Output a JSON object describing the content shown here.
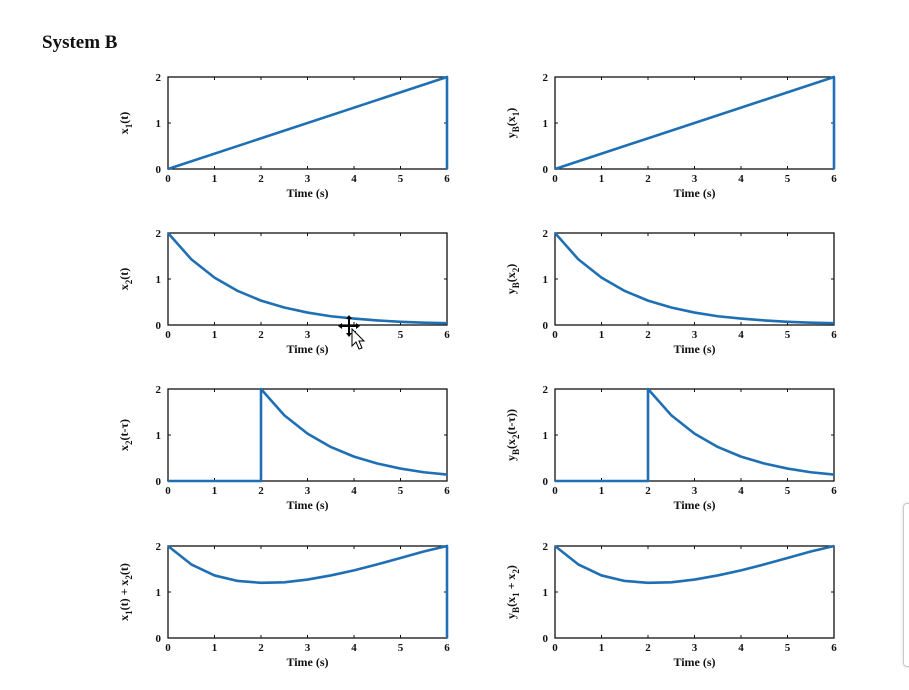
{
  "title": "System B",
  "colors": {
    "line": "#1f6fb4",
    "axes": "#111111"
  },
  "cursor_icon": "move-cursor-icon",
  "chart_data": [
    {
      "type": "line",
      "id": "x1",
      "ylabel": "x_1(t)",
      "xlabel": "Time (s)",
      "xlim": [
        0,
        6
      ],
      "ylim": [
        0,
        2
      ],
      "xticks": [
        0,
        1,
        2,
        3,
        4,
        5,
        6
      ],
      "yticks": [
        0,
        1,
        2
      ],
      "series": [
        {
          "x": [
            0,
            6,
            6
          ],
          "y": [
            0,
            2,
            0
          ]
        }
      ]
    },
    {
      "type": "line",
      "id": "yB_x1",
      "ylabel": "y_B(x_1)",
      "xlabel": "Time (s)",
      "xlim": [
        0,
        6
      ],
      "ylim": [
        0,
        2
      ],
      "xticks": [
        0,
        1,
        2,
        3,
        4,
        5,
        6
      ],
      "yticks": [
        0,
        1,
        2
      ],
      "series": [
        {
          "x": [
            0,
            6,
            6
          ],
          "y": [
            0,
            2,
            0
          ]
        }
      ]
    },
    {
      "type": "line",
      "id": "x2",
      "ylabel": "x_2(t)",
      "xlabel": "Time (s)",
      "xlim": [
        0,
        6
      ],
      "ylim": [
        0,
        2
      ],
      "xticks": [
        0,
        1,
        2,
        3,
        4,
        5,
        6
      ],
      "yticks": [
        0,
        1,
        2
      ],
      "series": [
        {
          "x": [
            0,
            0.5,
            1,
            1.5,
            2,
            2.5,
            3,
            3.5,
            4,
            4.5,
            5,
            5.5,
            6
          ],
          "y": [
            2,
            1.43,
            1.03,
            0.74,
            0.53,
            0.38,
            0.27,
            0.19,
            0.14,
            0.1,
            0.07,
            0.05,
            0.04
          ]
        }
      ]
    },
    {
      "type": "line",
      "id": "yB_x2",
      "ylabel": "y_B(x_2)",
      "xlabel": "Time (s)",
      "xlim": [
        0,
        6
      ],
      "ylim": [
        0,
        2
      ],
      "xticks": [
        0,
        1,
        2,
        3,
        4,
        5,
        6
      ],
      "yticks": [
        0,
        1,
        2
      ],
      "series": [
        {
          "x": [
            0,
            0.5,
            1,
            1.5,
            2,
            2.5,
            3,
            3.5,
            4,
            4.5,
            5,
            5.5,
            6
          ],
          "y": [
            2,
            1.43,
            1.03,
            0.74,
            0.53,
            0.38,
            0.27,
            0.19,
            0.14,
            0.1,
            0.07,
            0.05,
            0.04
          ]
        }
      ]
    },
    {
      "type": "line",
      "id": "x2_shift",
      "ylabel": "x_2(t-τ)",
      "xlabel": "Time (s)",
      "xlim": [
        0,
        6
      ],
      "ylim": [
        0,
        2
      ],
      "xticks": [
        0,
        1,
        2,
        3,
        4,
        5,
        6
      ],
      "yticks": [
        0,
        1,
        2
      ],
      "series": [
        {
          "x": [
            0,
            2,
            2,
            2.5,
            3,
            3.5,
            4,
            4.5,
            5,
            5.5,
            6
          ],
          "y": [
            0,
            0,
            2,
            1.43,
            1.03,
            0.74,
            0.53,
            0.38,
            0.27,
            0.19,
            0.14
          ]
        }
      ]
    },
    {
      "type": "line",
      "id": "yB_x2_shift",
      "ylabel": "y_B(x_2(t-τ))",
      "xlabel": "Time (s)",
      "xlim": [
        0,
        6
      ],
      "ylim": [
        0,
        2
      ],
      "xticks": [
        0,
        1,
        2,
        3,
        4,
        5,
        6
      ],
      "yticks": [
        0,
        1,
        2
      ],
      "series": [
        {
          "x": [
            0,
            2,
            2,
            2.5,
            3,
            3.5,
            4,
            4.5,
            5,
            5.5,
            6
          ],
          "y": [
            0,
            0,
            2,
            1.43,
            1.03,
            0.74,
            0.53,
            0.38,
            0.27,
            0.19,
            0.14
          ]
        }
      ]
    },
    {
      "type": "line",
      "id": "sum",
      "ylabel": "x_1(t) + x_2(t)",
      "xlabel": "Time (s)",
      "xlim": [
        0,
        6
      ],
      "ylim": [
        0,
        2
      ],
      "xticks": [
        0,
        1,
        2,
        3,
        4,
        5,
        6
      ],
      "yticks": [
        0,
        1,
        2
      ],
      "series": [
        {
          "x": [
            0,
            0.5,
            1,
            1.5,
            2,
            2.5,
            3,
            3.5,
            4,
            4.5,
            5,
            5.5,
            6,
            6
          ],
          "y": [
            2,
            1.6,
            1.36,
            1.24,
            1.2,
            1.21,
            1.27,
            1.36,
            1.47,
            1.6,
            1.74,
            1.88,
            2,
            0
          ]
        }
      ]
    },
    {
      "type": "line",
      "id": "yB_sum",
      "ylabel": "y_B(x_1 + x_2)",
      "xlabel": "Time (s)",
      "xlim": [
        0,
        6
      ],
      "ylim": [
        0,
        2
      ],
      "xticks": [
        0,
        1,
        2,
        3,
        4,
        5,
        6
      ],
      "yticks": [
        0,
        1,
        2
      ],
      "series": [
        {
          "x": [
            0,
            0.5,
            1,
            1.5,
            2,
            2.5,
            3,
            3.5,
            4,
            4.5,
            5,
            5.5,
            6
          ],
          "y": [
            2,
            1.6,
            1.36,
            1.24,
            1.2,
            1.21,
            1.27,
            1.36,
            1.47,
            1.6,
            1.74,
            1.88,
            2
          ]
        }
      ]
    }
  ]
}
